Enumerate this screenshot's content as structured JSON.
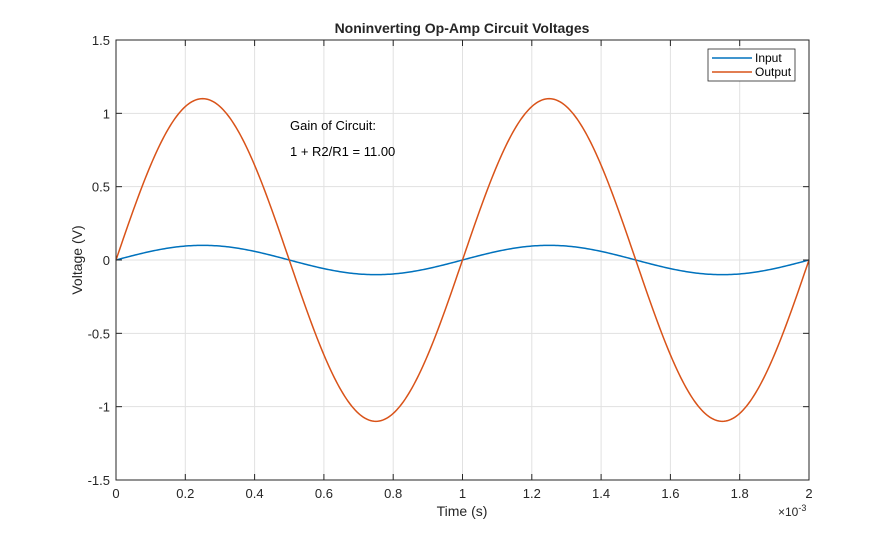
{
  "chart_data": {
    "type": "line",
    "title": "Noninverting Op-Amp Circuit Voltages",
    "xlabel": "Time (s)",
    "ylabel": "Voltage (V)",
    "x_exponent_label": "×10",
    "x_exponent_power": "-3",
    "xlim": [
      0,
      2
    ],
    "ylim": [
      -1.5,
      1.5
    ],
    "grid": true,
    "xticks": [
      0,
      0.2,
      0.4,
      0.6,
      0.8,
      1,
      1.2,
      1.4,
      1.6,
      1.8,
      2
    ],
    "xtick_labels": [
      "0",
      "0.2",
      "0.4",
      "0.6",
      "0.8",
      "1",
      "1.2",
      "1.4",
      "1.6",
      "1.8",
      "2"
    ],
    "yticks": [
      -1.5,
      -1,
      -0.5,
      0,
      0.5,
      1,
      1.5
    ],
    "ytick_labels": [
      "-1.5",
      "-1",
      "-0.5",
      "0",
      "0.5",
      "1",
      "1.5"
    ],
    "legend_placement": "top-right",
    "series": [
      {
        "name": "Input",
        "color": "#0072BD",
        "function": "sine",
        "amplitude": 0.1,
        "period": 1,
        "x_range": [
          0,
          2
        ]
      },
      {
        "name": "Output",
        "color": "#D95319",
        "function": "sine",
        "amplitude": 1.1,
        "period": 1,
        "x_range": [
          0,
          2
        ]
      }
    ],
    "annotations": [
      "Gain of Circuit:",
      "1 + R2/R1 = 11.00"
    ]
  }
}
